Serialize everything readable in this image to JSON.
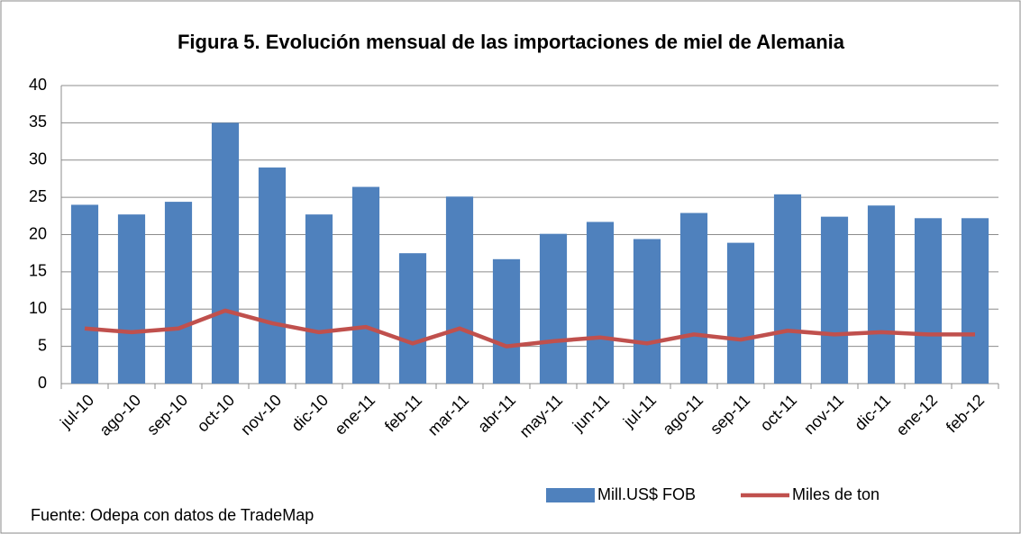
{
  "chart_data": {
    "type": "bar_line",
    "title": "Figura 5.  Evolución mensual de las importaciones de miel de Alemania",
    "source": "Fuente: Odepa con datos de TradeMap",
    "categories": [
      "jul-10",
      "ago-10",
      "sep-10",
      "oct-10",
      "nov-10",
      "dic-10",
      "ene-11",
      "feb-11",
      "mar-11",
      "abr-11",
      "may-11",
      "jun-11",
      "jul-11",
      "ago-11",
      "sep-11",
      "oct-11",
      "nov-11",
      "dic-11",
      "ene-12",
      "feb-12"
    ],
    "series": [
      {
        "name": "Mill.US$ FOB",
        "type": "bar",
        "color": "#4f81bd",
        "values": [
          24,
          22.7,
          24.4,
          35,
          29,
          22.7,
          26.4,
          17.5,
          25.1,
          16.7,
          20.1,
          21.7,
          19.4,
          22.9,
          18.9,
          25.4,
          22.4,
          23.9,
          22.2,
          22.2
        ]
      },
      {
        "name": "Miles de ton",
        "type": "line",
        "color": "#c0504d",
        "values": [
          7.4,
          6.9,
          7.4,
          9.8,
          8.1,
          6.9,
          7.6,
          5.4,
          7.4,
          5.0,
          5.7,
          6.2,
          5.4,
          6.6,
          5.9,
          7.1,
          6.6,
          6.9,
          6.6,
          6.6
        ]
      }
    ],
    "ylim": [
      0,
      40
    ],
    "yticks": [
      0,
      5,
      10,
      15,
      20,
      25,
      30,
      35,
      40
    ],
    "grid": true,
    "legend": "bottom"
  }
}
